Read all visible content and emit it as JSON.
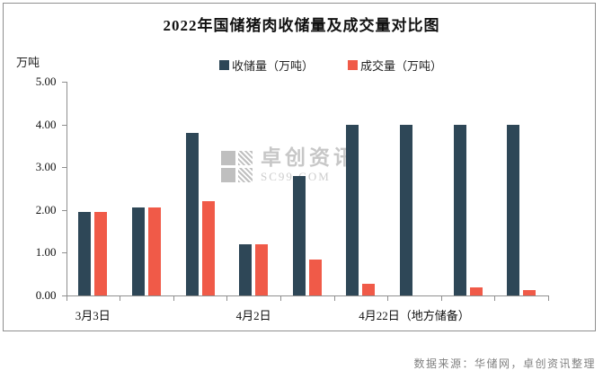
{
  "title": "2022年国储猪肉收储量及成交量对比图",
  "unit_label": "万吨",
  "legend": [
    {
      "label": "收储量（万吨）",
      "color": "#2e4757"
    },
    {
      "label": "成交量（万吨）",
      "color": "#f05a48"
    }
  ],
  "watermark": {
    "brand": "卓创资讯",
    "domain": "SC99.COM"
  },
  "footer": {
    "source_note": "数据来源：华储网，卓创资讯整理"
  },
  "colors": {
    "bar_navy": "#2e4757",
    "bar_red": "#f05a48",
    "axis": "#8f8f8f",
    "watermark": "#c7c7c7"
  },
  "chart_data": {
    "type": "bar",
    "title": "2022年国储猪肉收储量及成交量对比图",
    "ylabel": "万吨",
    "xlabel": "",
    "ylim": [
      0,
      5
    ],
    "grid": false,
    "legend_position": "top",
    "y_ticks": [
      5,
      4,
      3,
      2,
      1,
      0
    ],
    "y_tick_labels": [
      "5.00",
      "4.00",
      "3.00",
      "2.00",
      "1.00",
      "0.00"
    ],
    "n_groups": 9,
    "x_axis_labels": [
      {
        "text": "3月3日",
        "group": 0
      },
      {
        "text": "4月2日",
        "group": 3
      },
      {
        "text": "4月22日（地方储备）",
        "group": 6
      }
    ],
    "series": [
      {
        "name": "收储量（万吨）",
        "color": "#2e4757",
        "values": [
          1.95,
          2.05,
          3.8,
          1.2,
          2.8,
          4.0,
          4.0,
          4.0,
          4.0
        ]
      },
      {
        "name": "成交量（万吨）",
        "color": "#f05a48",
        "values": [
          1.95,
          2.05,
          2.2,
          1.2,
          0.85,
          0.27,
          0,
          0.18,
          0.12
        ]
      }
    ]
  }
}
